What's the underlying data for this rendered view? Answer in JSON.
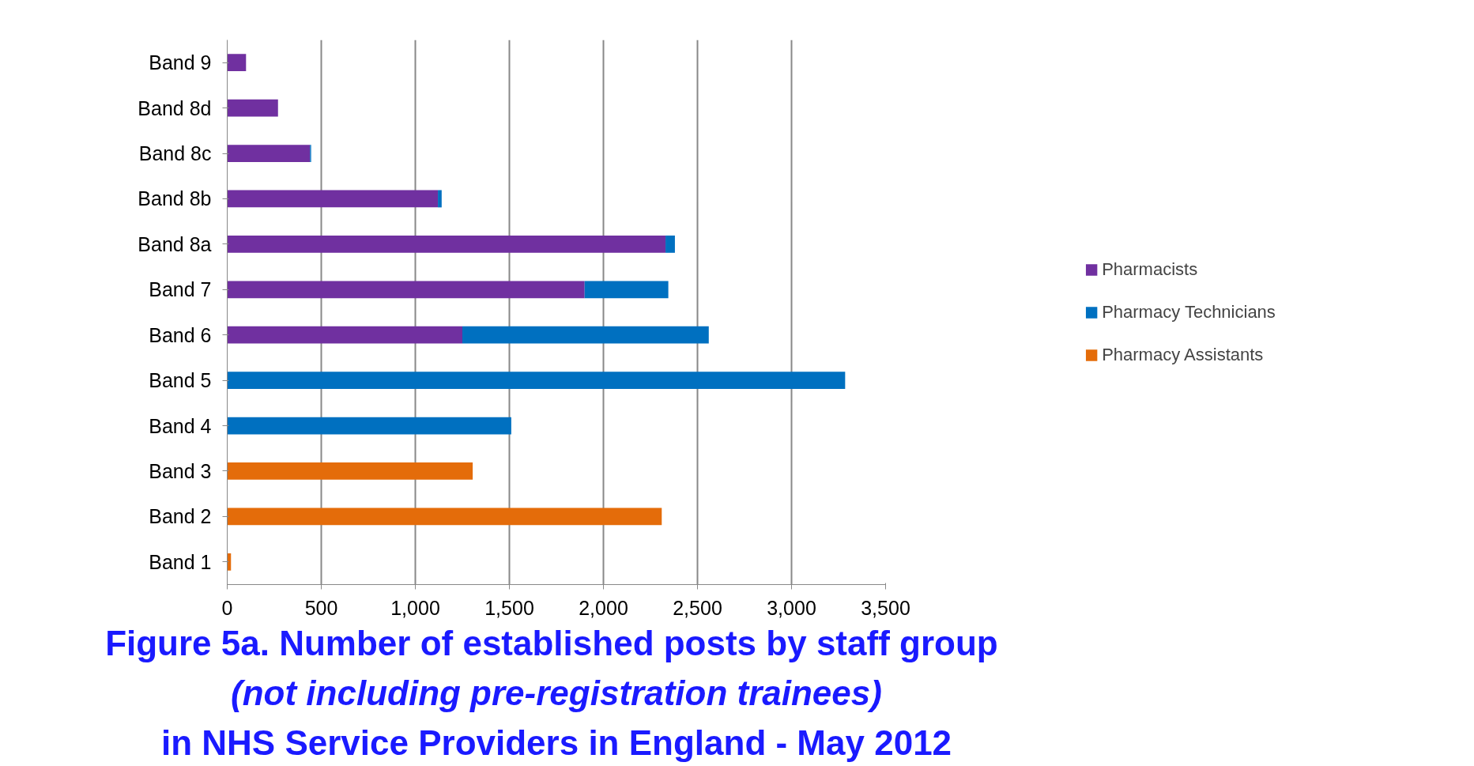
{
  "chart_data": {
    "type": "bar",
    "orientation": "horizontal",
    "stacked": true,
    "title": "Figure 5a.  Number of established posts by staff group",
    "subtitle": "(not including pre-registration trainees)",
    "annotations": [
      "in NHS Service Providers in England - May 2012"
    ],
    "categories": [
      "Band 9",
      "Band 8d",
      "Band 8c",
      "Band 8b",
      "Band 8a",
      "Band 7",
      "Band 6",
      "Band 5",
      "Band 4",
      "Band 3",
      "Band 2",
      "Band 1"
    ],
    "series": [
      {
        "name": "Pharmacists",
        "color": "#7030a0",
        "values": [
          100,
          270,
          440,
          1120,
          2330,
          1900,
          1250,
          null,
          null,
          null,
          null,
          null
        ]
      },
      {
        "name": "Pharmacy Technicians",
        "color": "#0070c0",
        "values": [
          null,
          null,
          6,
          20,
          50,
          445,
          1310,
          3285,
          1510,
          null,
          null,
          null
        ]
      },
      {
        "name": "Pharmacy Assistants",
        "color": "#e46c0a",
        "values": [
          null,
          null,
          null,
          null,
          null,
          null,
          null,
          null,
          null,
          1305,
          2310,
          20
        ]
      }
    ],
    "xlim": [
      0,
      3500
    ],
    "xticks": [
      0,
      {
        "value": 500,
        "label": "500"
      },
      {
        "value": 1000,
        "label": "1,000"
      },
      {
        "value": 1500,
        "label": "1,500"
      },
      {
        "value": 2000,
        "label": "2,000"
      },
      {
        "value": 2500,
        "label": "2,500"
      },
      {
        "value": 3000,
        "label": "3,000"
      },
      {
        "value": 3500,
        "label": "3,500"
      }
    ],
    "grid": "x",
    "legend": "right"
  }
}
